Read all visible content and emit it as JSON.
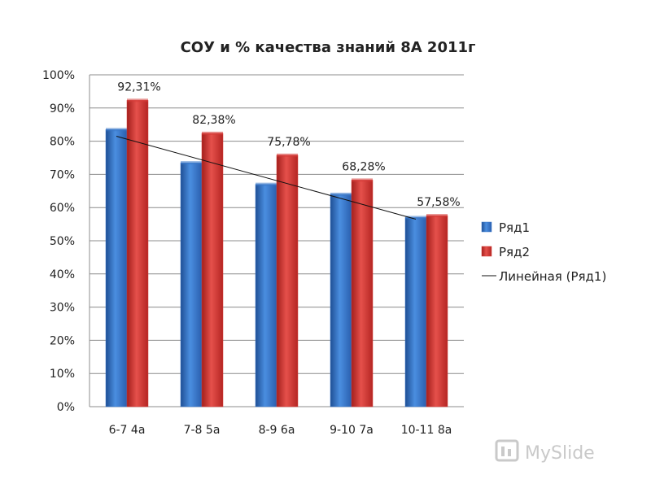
{
  "chart_data": {
    "type": "bar",
    "title": "СОУ и % качества знаний 8А 2011г",
    "categories": [
      "6-7 4а",
      "7-8 5а",
      "8-9 6а",
      "9-10 7а",
      "10-11 8а"
    ],
    "series": [
      {
        "name": "Ряд1",
        "values": [
          83.5,
          73.5,
          67,
          64,
          57
        ],
        "color": "#3a78c9"
      },
      {
        "name": "Ряд2",
        "values": [
          92.31,
          82.38,
          75.78,
          68.28,
          57.58
        ],
        "color": "#d63a36"
      }
    ],
    "data_labels": [
      "92,31%",
      "82,38%",
      "75,78%",
      "68,28%",
      "57,58%"
    ],
    "trendline": {
      "name": "Линейная (Ряд1)",
      "of_series": "Ряд1",
      "type": "linear"
    },
    "ylim": [
      0,
      100
    ],
    "yticks": [
      "0%",
      "10%",
      "20%",
      "30%",
      "40%",
      "50%",
      "60%",
      "70%",
      "80%",
      "90%",
      "100%"
    ],
    "grid": true,
    "legend": "right"
  },
  "watermark": {
    "text": "MySlide"
  }
}
